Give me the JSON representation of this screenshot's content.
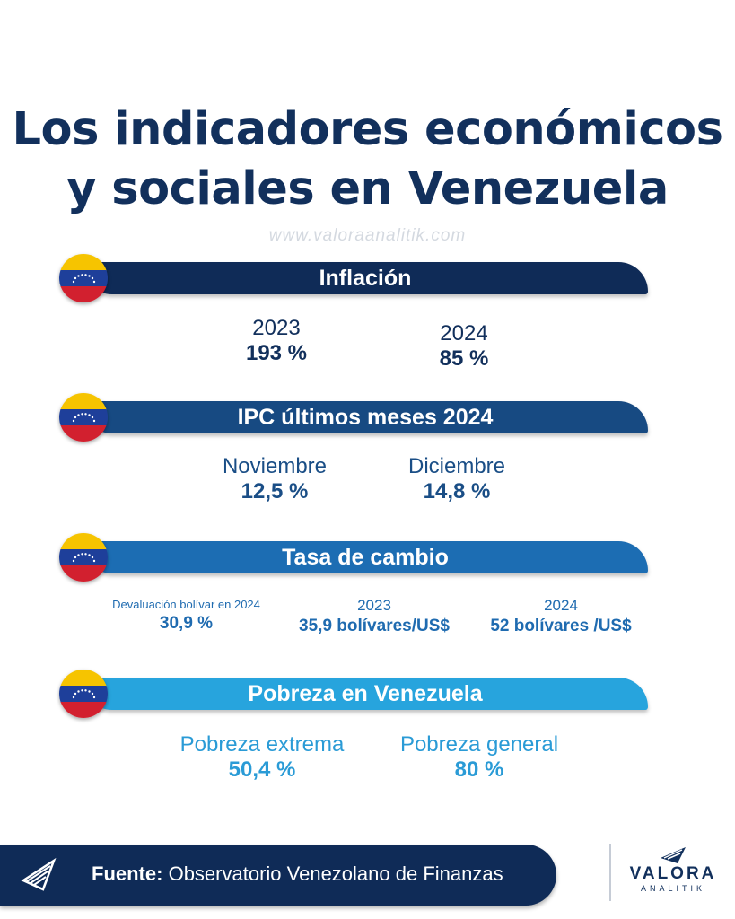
{
  "title": {
    "line1": "Los indicadores económicos",
    "line2": "y sociales en Venezuela"
  },
  "watermark": "www.valoraanalitik.com",
  "colors": {
    "navy": "#12305c",
    "bar1": "#0f2b57",
    "bar2": "#174a82",
    "bar3": "#1c6db3",
    "bar4": "#27a4dd"
  },
  "sections": [
    {
      "title": "Inflación",
      "items": [
        {
          "label": "2023",
          "value": "193 %"
        },
        {
          "label": "2024",
          "value": "85 %"
        }
      ]
    },
    {
      "title": "IPC últimos meses 2024",
      "items": [
        {
          "label": "Noviembre",
          "value": "12,5 %"
        },
        {
          "label": "Diciembre",
          "value": "14,8 %"
        }
      ]
    },
    {
      "title": "Tasa de cambio",
      "items": [
        {
          "label": "Devaluación bolívar en 2024",
          "value": "30,9 %"
        },
        {
          "label": "2023",
          "value": "35,9 bolívares/US$"
        },
        {
          "label": "2024",
          "value": "52 bolívares /US$"
        }
      ]
    },
    {
      "title": "Pobreza en Venezuela",
      "items": [
        {
          "label": "Pobreza extrema",
          "value": "50,4 %"
        },
        {
          "label": "Pobreza general",
          "value": "80 %"
        }
      ]
    }
  ],
  "footer": {
    "source_label": "Fuente:",
    "source_text": "Observatorio Venezolano de Finanzas"
  },
  "brand": {
    "name": "VALORA",
    "subtitle": "ANALITIK"
  }
}
